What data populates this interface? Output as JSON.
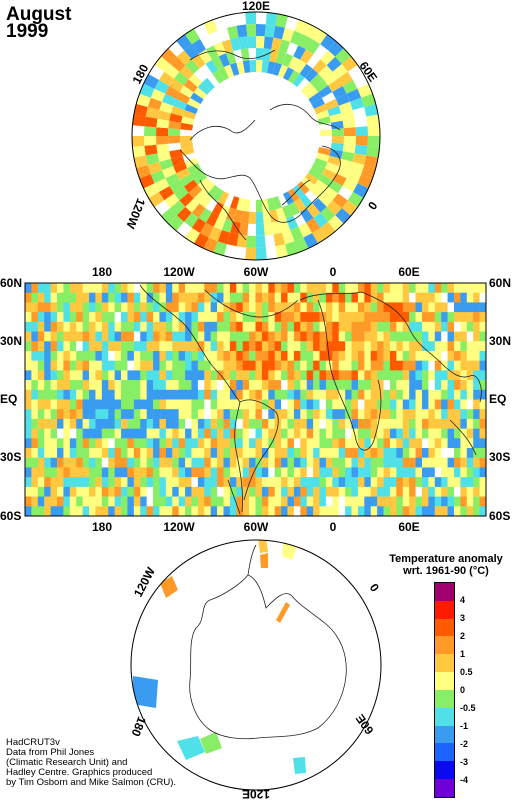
{
  "title": {
    "line1": "August",
    "line2": "1999"
  },
  "credits": [
    "HadCRUT3v",
    "Data from Phil Jones",
    "(Climatic Research Unit) and",
    "Hadley Centre.  Graphics produced",
    "by Tim Osborn and Mike Salmon (CRU)."
  ],
  "legend": {
    "title_line1": "Temperature anomaly",
    "title_line2": "wrt. 1961-90  (°C)",
    "colors": [
      "#a0006e",
      "#ff1a00",
      "#ff5a00",
      "#ff9a28",
      "#ffc840",
      "#ffff82",
      "#88ee66",
      "#50e0e8",
      "#3a9cf0",
      "#1a64ff",
      "#0a0af0",
      "#7000d8"
    ],
    "labels": [
      "4",
      "3",
      "2",
      "1",
      "0.5",
      "0",
      "-0.5",
      "-1",
      "-2",
      "-3",
      "-4"
    ]
  },
  "world_map": {
    "lat_labels": [
      "60N",
      "30N",
      "EQ",
      "30S",
      "60S"
    ],
    "lon_labels": [
      "180",
      "120W",
      "60W",
      "0",
      "60E"
    ]
  },
  "north_polar": {
    "labels": [
      "120E",
      "60E",
      "0",
      "120W",
      "180"
    ]
  },
  "south_polar": {
    "labels": [
      "120W",
      "0",
      "180",
      "60E",
      "120E"
    ]
  }
}
